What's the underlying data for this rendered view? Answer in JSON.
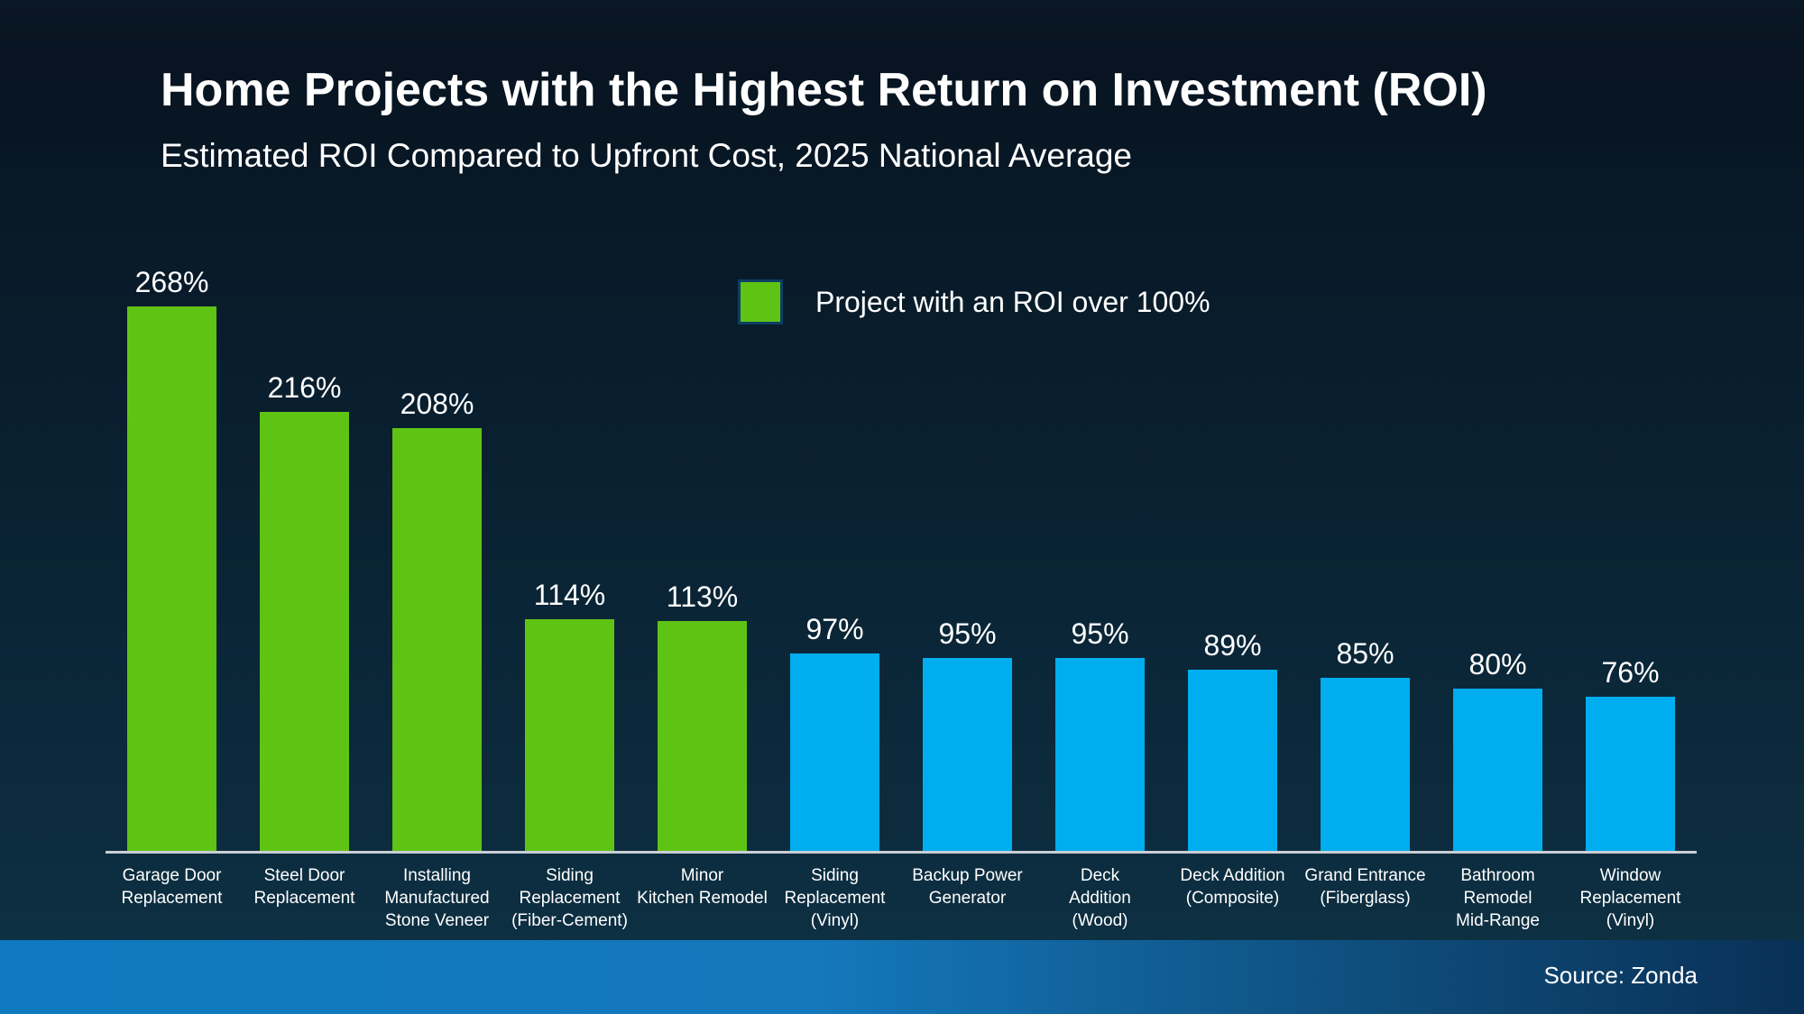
{
  "title": "Home Projects with the Highest Return on Investment (ROI)",
  "subtitle": "Estimated ROI Compared to Upfront Cost, 2025 National Average",
  "legend": {
    "label": "Project with an ROI over 100%"
  },
  "footer": {
    "source": "Source: Zonda"
  },
  "colors": {
    "background_top": "#0A1724",
    "background_bottom": "#0E3245",
    "bar_green": "#5FC314",
    "bar_blue": "#00ADEE",
    "axis_line": "#C9CED6",
    "legend_swatch_border": "#0D3F63",
    "footer_left": "#0F7AC0",
    "footer_right": "#093056",
    "text": "#FFFFFF"
  },
  "chart_data": {
    "type": "bar",
    "title": "Home Projects with the Highest Return on Investment (ROI)",
    "subtitle": "Estimated ROI Compared to Upfront Cost, 2025 National Average",
    "ylim": [
      0,
      280
    ],
    "grid": false,
    "legend_position": "top-center",
    "highlight_rule": "Project with an ROI over 100% shown in green; others in blue",
    "categories": [
      "Garage Door Replacement",
      "Steel Door Replacement",
      "Installing Manufactured Stone Veneer",
      "Siding Replacement (Fiber-Cement)",
      "Minor Kitchen Remodel",
      "Siding Replacement (Vinyl)",
      "Backup Power Generator",
      "Deck Addition (Wood)",
      "Deck Addition (Composite)",
      "Grand Entrance (Fiberglass)",
      "Bathroom Remodel Mid-Range",
      "Window Replacement (Vinyl)"
    ],
    "values": [
      268,
      216,
      208,
      114,
      113,
      97,
      95,
      95,
      89,
      85,
      80,
      76
    ],
    "bars": [
      {
        "label_lines": [
          "Garage Door",
          "Replacement"
        ],
        "value": 268,
        "display_value": "268%",
        "color": "green"
      },
      {
        "label_lines": [
          "Steel Door",
          "Replacement"
        ],
        "value": 216,
        "display_value": "216%",
        "color": "green"
      },
      {
        "label_lines": [
          "Installing",
          "Manufactured",
          "Stone Veneer"
        ],
        "value": 208,
        "display_value": "208%",
        "color": "green"
      },
      {
        "label_lines": [
          "Siding",
          "Replacement",
          "(Fiber-Cement)"
        ],
        "value": 114,
        "display_value": "114%",
        "color": "green"
      },
      {
        "label_lines": [
          "Minor",
          "Kitchen Remodel"
        ],
        "value": 113,
        "display_value": "113%",
        "color": "green"
      },
      {
        "label_lines": [
          "Siding",
          "Replacement",
          "(Vinyl)"
        ],
        "value": 97,
        "display_value": "97%",
        "color": "blue"
      },
      {
        "label_lines": [
          "Backup Power",
          "Generator"
        ],
        "value": 95,
        "display_value": "95%",
        "color": "blue"
      },
      {
        "label_lines": [
          "Deck",
          "Addition",
          "(Wood)"
        ],
        "value": 95,
        "display_value": "95%",
        "color": "blue"
      },
      {
        "label_lines": [
          "Deck Addition",
          "(Composite)"
        ],
        "value": 89,
        "display_value": "89%",
        "color": "blue"
      },
      {
        "label_lines": [
          "Grand Entrance",
          "(Fiberglass)"
        ],
        "value": 85,
        "display_value": "85%",
        "color": "blue"
      },
      {
        "label_lines": [
          "Bathroom",
          "Remodel",
          "Mid-Range"
        ],
        "value": 80,
        "display_value": "80%",
        "color": "blue"
      },
      {
        "label_lines": [
          "Window",
          "Replacement",
          "(Vinyl)"
        ],
        "value": 76,
        "display_value": "76%",
        "color": "blue"
      }
    ]
  }
}
